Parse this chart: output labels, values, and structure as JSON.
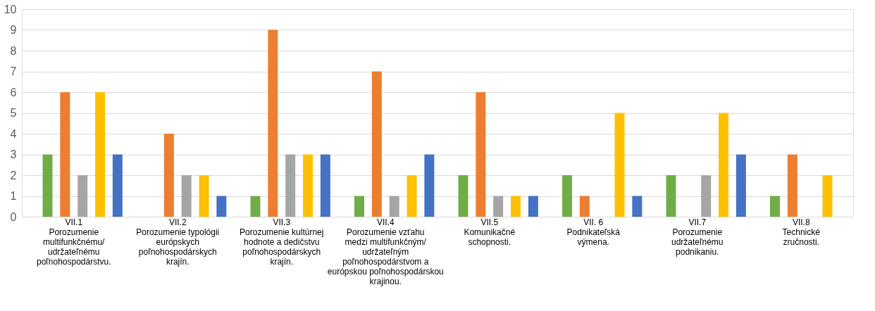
{
  "chart_data": {
    "type": "bar",
    "categories": [
      "VII.1\nPorozumenie\nmultifunkčnému/\nudržateľnému\npoľnohospodárstvu.",
      "VII.2\nPorozumenie typológii\neurópskych\npoľnohospodárskych\nkrajín.",
      "VII.3\nPorozumenie kultúrnej\nhodnote a dedičstvu\npoľnohospodárskych\nkrajín.",
      "VII.4\nPorozumenie vzťahu\nmedzi multifunkčným/\nudržateľným\npoľnohospodárstvom a\neurópskou poľnohospodárskou\nkrajinou.",
      "VII.5\nKomunikačné\nschopnosti.",
      "VII. 6\nPodnikateľská\nvýmena.",
      "VII.7\nPorozumenie\nudržateľnému\npodnikaniu.",
      "VII.8\nTechnické\nzručnosti."
    ],
    "series": [
      {
        "color": "#70ad47",
        "values": [
          3,
          null,
          1,
          1,
          2,
          2,
          2,
          1
        ]
      },
      {
        "color": "#ed7d31",
        "values": [
          6,
          4,
          9,
          7,
          6,
          1,
          null,
          3
        ]
      },
      {
        "color": "#a5a5a5",
        "values": [
          2,
          2,
          3,
          1,
          1,
          null,
          2,
          null
        ]
      },
      {
        "color": "#ffc000",
        "values": [
          6,
          2,
          3,
          2,
          1,
          5,
          5,
          2
        ]
      },
      {
        "color": "#4472c4",
        "values": [
          3,
          1,
          3,
          3,
          1,
          1,
          3,
          null
        ]
      }
    ],
    "ylim": [
      0,
      10
    ],
    "yticks": [
      0,
      1,
      2,
      3,
      4,
      5,
      6,
      7,
      8,
      9,
      10
    ],
    "grid": "y",
    "legend": false
  }
}
